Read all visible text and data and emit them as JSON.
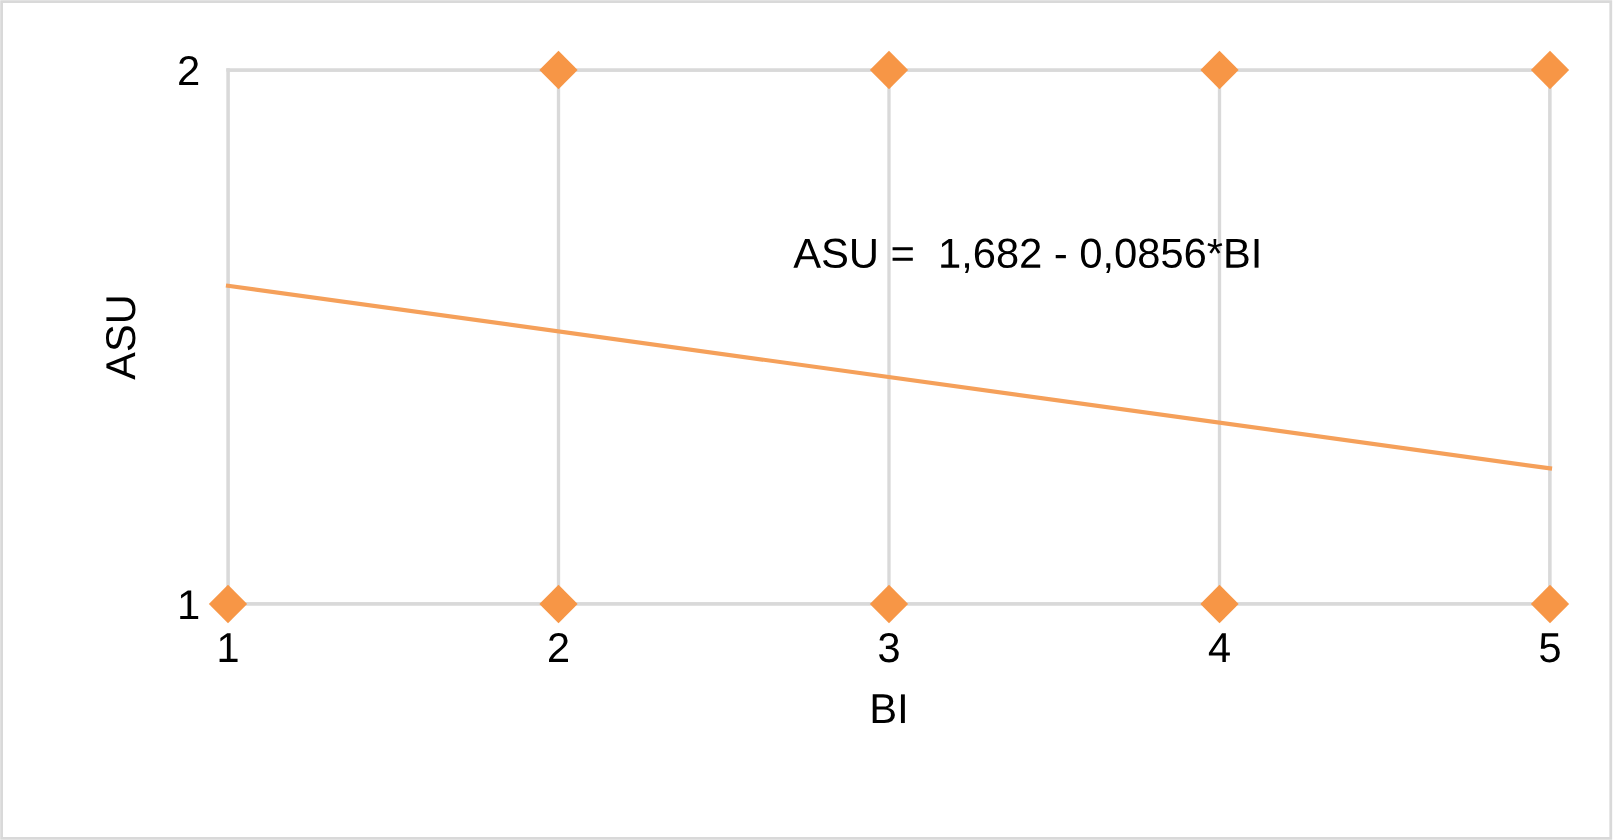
{
  "chart_data": {
    "type": "scatter",
    "xlabel": "BI",
    "ylabel": "ASU",
    "series": [
      {
        "color": "#f79646",
        "marker": "diamond",
        "x": [
          1,
          2,
          3,
          4,
          5,
          2,
          3,
          4,
          5
        ],
        "values": [
          1,
          1,
          1,
          1,
          1,
          2,
          2,
          2,
          2
        ]
      },
      {
        "type": "line",
        "color": "#f5a05a",
        "marker": "none",
        "line_style": "solid",
        "x": [
          1,
          5
        ],
        "values": [
          1.596,
          1.254
        ]
      }
    ],
    "annotations": [
      "ASU =  1,682 - 0,0856*BI"
    ],
    "xlim": [
      1,
      5
    ],
    "ylim": [
      1,
      2
    ],
    "xticks": [
      1,
      2,
      3,
      4,
      5
    ],
    "yticks": [
      1,
      2
    ],
    "grid": true,
    "legend": false
  }
}
